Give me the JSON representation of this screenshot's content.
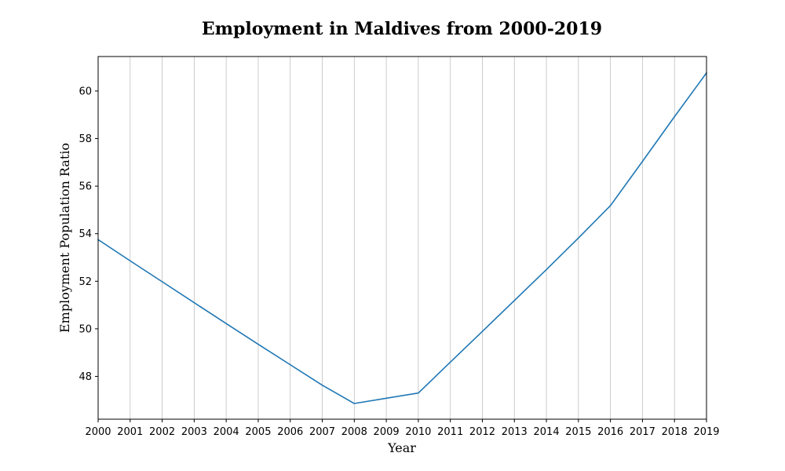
{
  "chart_data": {
    "type": "line",
    "title": "Employment in Maldives from 2000-2019",
    "xlabel": "Year",
    "ylabel": "Employment Population Ratio",
    "x": [
      "2000",
      "2001",
      "2002",
      "2003",
      "2004",
      "2005",
      "2006",
      "2007",
      "2008",
      "2009",
      "2010",
      "2011",
      "2012",
      "2013",
      "2014",
      "2015",
      "2016",
      "2017",
      "2018",
      "2019"
    ],
    "series": [
      {
        "values": [
          53.75,
          52.86,
          51.98,
          51.1,
          50.22,
          49.35,
          48.49,
          47.63,
          46.86,
          47.08,
          47.3,
          48.6,
          49.89,
          51.19,
          52.49,
          53.82,
          55.18,
          57.04,
          58.92,
          60.76
        ]
      }
    ],
    "xlim": [
      "2000",
      "2019"
    ],
    "ylim": [
      46.2,
      61.45
    ],
    "yticks": [
      48,
      50,
      52,
      54,
      56,
      58,
      60
    ],
    "grid": "vertical",
    "colors": {
      "series": "#1f77b4"
    }
  }
}
